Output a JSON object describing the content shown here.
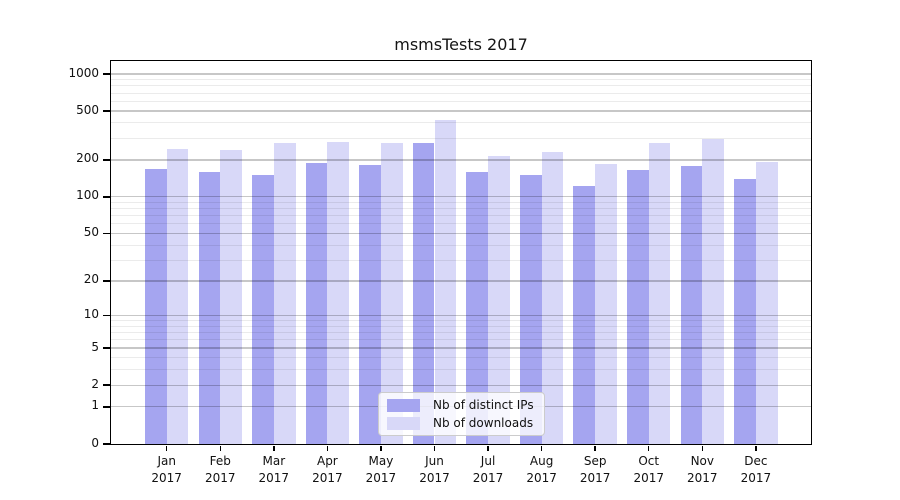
{
  "title": "msmsTests 2017",
  "chart_data": {
    "type": "bar",
    "title": "msmsTests 2017",
    "categories": [
      {
        "month": "Jan",
        "year": "2017"
      },
      {
        "month": "Feb",
        "year": "2017"
      },
      {
        "month": "Mar",
        "year": "2017"
      },
      {
        "month": "Apr",
        "year": "2017"
      },
      {
        "month": "May",
        "year": "2017"
      },
      {
        "month": "Jun",
        "year": "2017"
      },
      {
        "month": "Jul",
        "year": "2017"
      },
      {
        "month": "Aug",
        "year": "2017"
      },
      {
        "month": "Sep",
        "year": "2017"
      },
      {
        "month": "Oct",
        "year": "2017"
      },
      {
        "month": "Nov",
        "year": "2017"
      },
      {
        "month": "Dec",
        "year": "2017"
      }
    ],
    "series": [
      {
        "name": "Nb of distinct IPs",
        "key": "ips",
        "color": "#a5a5f0",
        "values": [
          168,
          161,
          151,
          190,
          182,
          277,
          161,
          151,
          123,
          166,
          179,
          141
        ]
      },
      {
        "name": "Nb of downloads",
        "key": "downloads",
        "color": "#d8d8f8",
        "values": [
          246,
          241,
          277,
          280,
          274,
          420,
          216,
          234,
          185,
          277,
          297,
          192
        ]
      }
    ],
    "y_axis": {
      "scale": "log10(value+1)",
      "ticks": [
        0,
        1,
        2,
        5,
        10,
        20,
        50,
        100,
        200,
        500,
        1000
      ],
      "minor_ticks": [
        3,
        4,
        6,
        7,
        8,
        9,
        30,
        40,
        60,
        70,
        80,
        90,
        300,
        400,
        600,
        700,
        800,
        900
      ]
    },
    "legend_position": "inside-bottom-center",
    "grid": true,
    "frame_color": "#000000",
    "background_color": "#ffffff"
  }
}
